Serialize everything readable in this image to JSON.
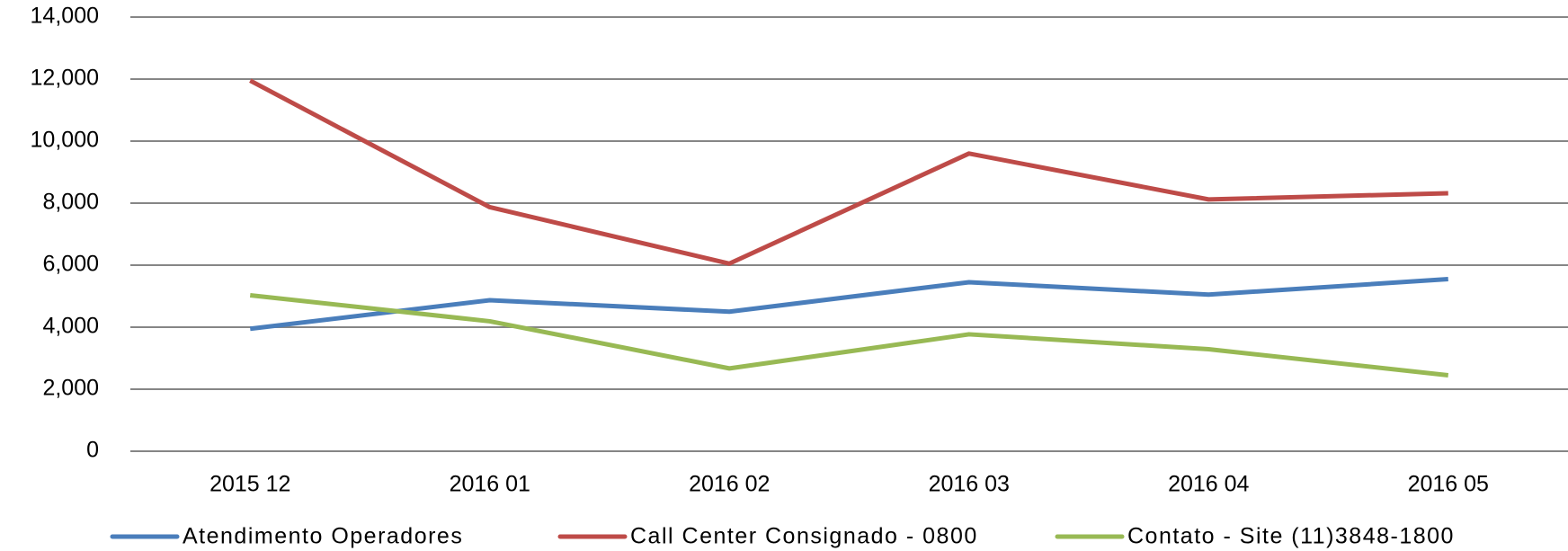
{
  "chart_data": {
    "type": "line",
    "categories": [
      "2015 12",
      "2016 01",
      "2016 02",
      "2016 03",
      "2016 04",
      "2016 05"
    ],
    "series": [
      {
        "name": "Atendimento Operadores",
        "color": "#4a7ebb",
        "values": [
          3950,
          4870,
          4500,
          5450,
          5050,
          5550
        ]
      },
      {
        "name": "Call Center Consignado - 0800",
        "color": "#be4b48",
        "values": [
          11950,
          7870,
          6050,
          9600,
          8120,
          8320
        ]
      },
      {
        "name": "Contato - Site (11)3848-1800",
        "color": "#98b954",
        "values": [
          5030,
          4190,
          2670,
          3770,
          3290,
          2450
        ]
      }
    ],
    "ylim": [
      0,
      14000
    ],
    "yticks": [
      0,
      {
        "value": 2000,
        "label": "2,000"
      },
      {
        "value": 4000,
        "label": "4,000"
      },
      {
        "value": 6000,
        "label": "6,000"
      },
      {
        "value": 8000,
        "label": "8,000"
      },
      {
        "value": 10000,
        "label": "10,000"
      },
      {
        "value": 12000,
        "label": "12,000"
      },
      {
        "value": 14000,
        "label": "14,000"
      }
    ],
    "grid": true,
    "legend": "bottom"
  }
}
